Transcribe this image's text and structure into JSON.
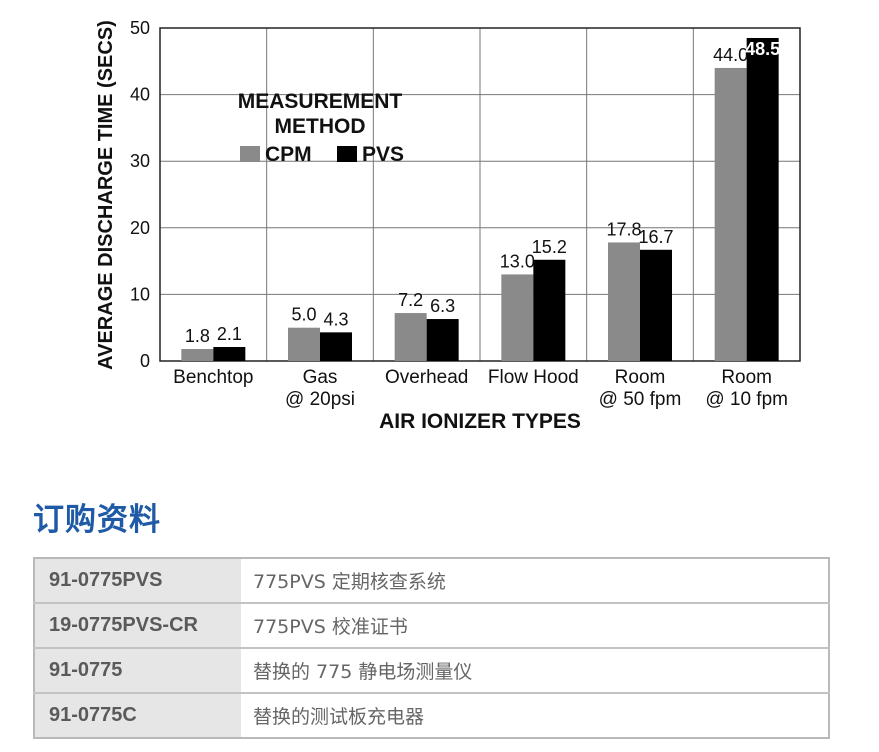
{
  "chart_data": {
    "type": "bar",
    "categories": [
      [
        "Benchtop"
      ],
      [
        "Gas",
        "@ 20psi"
      ],
      [
        "Overhead"
      ],
      [
        "Flow Hood"
      ],
      [
        "Room",
        "@ 50 fpm"
      ],
      [
        "Room",
        "@ 10 fpm"
      ]
    ],
    "series": [
      {
        "name": "CPM",
        "color": "#8a8a8a",
        "values": [
          1.8,
          5.0,
          7.2,
          13.0,
          17.8,
          44.0
        ],
        "value_labels": [
          "1.8",
          "5.0",
          "7.2",
          "13.0",
          "17.8",
          "44.0"
        ]
      },
      {
        "name": "PVS",
        "color": "#000000",
        "values": [
          2.1,
          4.3,
          6.3,
          15.2,
          16.7,
          48.5
        ],
        "value_labels": [
          "2.1",
          "4.3",
          "6.3",
          "15.2",
          "16.7",
          "48.5"
        ]
      }
    ],
    "ylabel": "AVERAGE DISCHARGE TIME (SECS)",
    "xlabel": "AIR IONIZER TYPES",
    "ylim": [
      0,
      50
    ],
    "yticks": [
      0,
      10,
      20,
      30,
      40,
      50
    ],
    "legend_title": [
      "MEASUREMENT",
      "METHOD"
    ],
    "legend_position": "top-left",
    "grid": true
  },
  "ordering": {
    "title": "订购资料",
    "rows": [
      {
        "code": "91-0775PVS",
        "desc": "775PVS 定期核查系统"
      },
      {
        "code": "19-0775PVS-CR",
        "desc": "775PVS 校准证书"
      },
      {
        "code": "91-0775",
        "desc": "替换的 775 静电场测量仪"
      },
      {
        "code": "91-0775C",
        "desc": "替换的测试板充电器"
      }
    ]
  }
}
